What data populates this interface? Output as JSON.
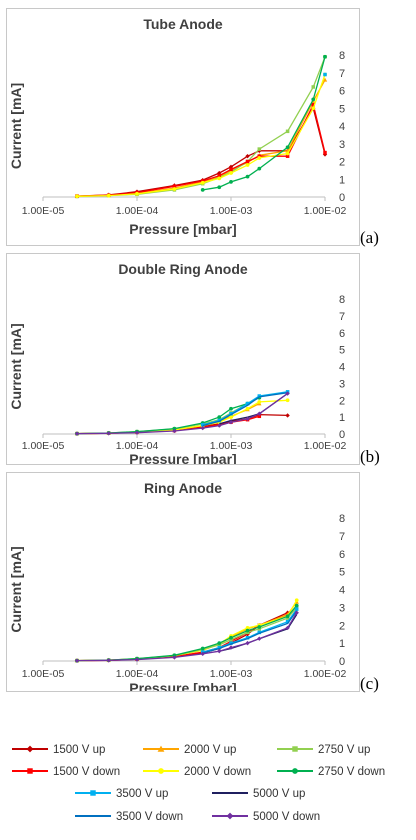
{
  "chart_data": [
    {
      "type": "line",
      "title": "Tube Anode",
      "panel_label": "(a)",
      "xlabel": "Pressure [mbar]",
      "ylabel": "Current [mA]",
      "xscale": "log",
      "xlim": [
        1e-05,
        0.01
      ],
      "ylim": [
        0,
        8
      ],
      "xticks": [
        "1.00E-05",
        "1.00E-04",
        "1.00E-03",
        "1.00E-02"
      ],
      "yticks": [
        "0",
        "1",
        "2",
        "3",
        "4",
        "5",
        "6",
        "7",
        "8"
      ],
      "series": [
        {
          "name": "1500 V up",
          "color": "#c00000",
          "marker": "diamond",
          "x": [
            2.3e-05,
            5e-05,
            0.0001,
            0.00025,
            0.0005,
            0.00075,
            0.001,
            0.0015,
            0.002,
            0.004,
            0.0075,
            0.01
          ],
          "y": [
            0.05,
            0.12,
            0.3,
            0.65,
            0.95,
            1.35,
            1.7,
            2.3,
            2.6,
            2.6,
            5.0,
            2.4
          ]
        },
        {
          "name": "2000 V up",
          "color": "#ffa500",
          "marker": "triangle",
          "x": [
            2.3e-05,
            5e-05,
            0.0001,
            0.00025,
            0.0005,
            0.00075,
            0.001,
            0.0015,
            0.002,
            0.004,
            0.0075,
            0.01
          ],
          "y": [
            0.05,
            0.1,
            0.2,
            0.5,
            0.85,
            1.15,
            1.5,
            1.95,
            2.35,
            2.6,
            5.4,
            6.6
          ]
        },
        {
          "name": "2750 V up",
          "color": "#92d050",
          "marker": "square",
          "x": [
            2.3e-05,
            5e-05,
            0.0001,
            0.00025,
            0.0005,
            0.00075,
            0.001,
            0.0015,
            0.002,
            0.004,
            0.0075,
            0.01
          ],
          "y": [
            0.03,
            0.08,
            0.15,
            0.4,
            0.75,
            1.1,
            1.4,
            2.0,
            2.7,
            3.7,
            6.2,
            7.9
          ]
        },
        {
          "name": "1500 V down",
          "color": "#ff0000",
          "marker": "square",
          "x": [
            2.3e-05,
            5e-05,
            0.0001,
            0.00025,
            0.0005,
            0.00075,
            0.001,
            0.0015,
            0.002,
            0.004,
            0.0075,
            0.01
          ],
          "y": [
            0.05,
            0.1,
            0.25,
            0.6,
            0.9,
            1.2,
            1.55,
            2.0,
            2.3,
            2.3,
            5.2,
            2.5
          ]
        },
        {
          "name": "2000 V down",
          "color": "#ffff00",
          "marker": "circle",
          "x": [
            2.3e-05,
            5e-05,
            0.0001,
            0.00025,
            0.0005,
            0.00075,
            0.001,
            0.0015,
            0.002,
            0.004,
            0.0075,
            0.01
          ],
          "y": [
            0.04,
            0.08,
            0.18,
            0.45,
            0.8,
            1.05,
            1.35,
            1.8,
            2.2,
            2.45,
            5.0,
            6.9
          ]
        },
        {
          "name": "2750 V down",
          "color": "#00b050",
          "marker": "circle",
          "x": [
            0.0005,
            0.00075,
            0.001,
            0.0015,
            0.002,
            0.004,
            0.0075,
            0.01
          ],
          "y": [
            0.4,
            0.55,
            0.85,
            1.15,
            1.6,
            2.8,
            5.5,
            7.9
          ]
        },
        {
          "name": "3500 V up",
          "color": "#00b0f0",
          "marker": "square",
          "x": [
            0.01
          ],
          "y": [
            6.9
          ]
        }
      ]
    },
    {
      "type": "line",
      "title": "Double Ring Anode",
      "panel_label": "(b)",
      "xlabel": "Pressure [mbar]",
      "ylabel": "Current [mA]",
      "xscale": "log",
      "xlim": [
        1e-05,
        0.01
      ],
      "ylim": [
        0,
        8
      ],
      "xticks": [
        "1.00E-05",
        "1.00E-04",
        "1.00E-03",
        "1.00E-02"
      ],
      "yticks": [
        "0",
        "1",
        "2",
        "3",
        "4",
        "5",
        "6",
        "7",
        "8"
      ],
      "series": [
        {
          "name": "1500 V up",
          "color": "#c00000",
          "marker": "diamond",
          "x": [
            2.3e-05,
            5e-05,
            0.0001,
            0.00025,
            0.0005,
            0.00075,
            0.001,
            0.0015,
            0.002,
            0.004
          ],
          "y": [
            0.02,
            0.05,
            0.1,
            0.2,
            0.45,
            0.6,
            0.75,
            0.9,
            1.15,
            1.1
          ]
        },
        {
          "name": "1500 V down",
          "color": "#ff0000",
          "marker": "square",
          "x": [
            2.3e-05,
            5e-05,
            0.0001,
            0.00025,
            0.0005,
            0.00075,
            0.001,
            0.0015,
            0.002
          ],
          "y": [
            0.02,
            0.05,
            0.1,
            0.2,
            0.4,
            0.55,
            0.7,
            0.85,
            1.05
          ]
        },
        {
          "name": "2000 V up",
          "color": "#ffa500",
          "marker": "triangle",
          "x": [
            2.3e-05,
            5e-05,
            0.0001,
            0.00025,
            0.0005,
            0.00075,
            0.001,
            0.0015,
            0.002
          ],
          "y": [
            0.02,
            0.05,
            0.12,
            0.25,
            0.5,
            0.75,
            1.05,
            1.45,
            1.8
          ]
        },
        {
          "name": "2000 V down",
          "color": "#ffff00",
          "marker": "circle",
          "x": [
            2.3e-05,
            5e-05,
            0.0001,
            0.00025,
            0.0005,
            0.00075,
            0.001,
            0.0015,
            0.002,
            0.004
          ],
          "y": [
            0.02,
            0.05,
            0.12,
            0.25,
            0.5,
            0.7,
            1.0,
            1.5,
            1.9,
            2.0
          ]
        },
        {
          "name": "2750 V up",
          "color": "#92d050",
          "marker": "square",
          "x": [
            2.3e-05,
            5e-05,
            0.0001,
            0.00025,
            0.0005,
            0.00075,
            0.001,
            0.0015,
            0.002
          ],
          "y": [
            0.02,
            0.06,
            0.14,
            0.3,
            0.6,
            0.85,
            1.25,
            1.8,
            2.2
          ]
        },
        {
          "name": "2750 V down",
          "color": "#00b050",
          "marker": "circle",
          "x": [
            2.3e-05,
            5e-05,
            0.0001,
            0.00025,
            0.0005,
            0.00075,
            0.001,
            0.0015,
            0.002
          ],
          "y": [
            0.02,
            0.06,
            0.14,
            0.32,
            0.65,
            1.0,
            1.5,
            1.8,
            2.15
          ]
        },
        {
          "name": "3500 V up",
          "color": "#00b0f0",
          "marker": "square",
          "x": [
            0.0005,
            0.00075,
            0.001,
            0.0015,
            0.002,
            0.004
          ],
          "y": [
            0.55,
            0.8,
            1.2,
            1.8,
            2.25,
            2.5
          ]
        },
        {
          "name": "3500 V down",
          "color": "#0070c0",
          "marker": "none",
          "x": [
            0.0005,
            0.00075,
            0.001,
            0.0015,
            0.002,
            0.004
          ],
          "y": [
            0.5,
            0.75,
            1.15,
            1.7,
            2.2,
            2.45
          ]
        },
        {
          "name": "5000 V up",
          "color": "#1f1f5f",
          "marker": "none",
          "x": [
            0.00075,
            0.001,
            0.0015,
            0.002,
            0.004
          ],
          "y": [
            0.6,
            0.8,
            1.0,
            1.2,
            2.4
          ]
        },
        {
          "name": "5000 V down",
          "color": "#7030a0",
          "marker": "diamond",
          "x": [
            2.3e-05,
            5e-05,
            0.0001,
            0.00025,
            0.0005,
            0.00075,
            0.001,
            0.0015,
            0.002,
            0.004
          ],
          "y": [
            0.02,
            0.04,
            0.08,
            0.18,
            0.35,
            0.5,
            0.7,
            0.9,
            1.2,
            2.4
          ]
        }
      ]
    },
    {
      "type": "line",
      "title": "Ring Anode",
      "panel_label": "(c)",
      "xlabel": "Pressure [mbar]",
      "ylabel": "Current [mA]",
      "xscale": "log",
      "xlim": [
        1e-05,
        0.01
      ],
      "ylim": [
        0,
        8
      ],
      "xticks": [
        "1.00E-05",
        "1.00E-04",
        "1.00E-03",
        "1.00E-02"
      ],
      "yticks": [
        "0",
        "1",
        "2",
        "3",
        "4",
        "5",
        "6",
        "7",
        "8"
      ],
      "series": [
        {
          "name": "1500 V up",
          "color": "#c00000",
          "marker": "diamond",
          "x": [
            2.3e-05,
            5e-05,
            0.0001,
            0.00025,
            0.0005,
            0.00075,
            0.001,
            0.0015,
            0.002,
            0.004
          ],
          "y": [
            0.02,
            0.04,
            0.1,
            0.25,
            0.45,
            0.7,
            1.0,
            1.5,
            2.0,
            2.7
          ]
        },
        {
          "name": "1500 V down",
          "color": "#ff0000",
          "marker": "square",
          "x": [
            2.3e-05,
            5e-05,
            0.0001,
            0.00025,
            0.0005,
            0.00075,
            0.001,
            0.0015,
            0.002,
            0.004
          ],
          "y": [
            0.02,
            0.04,
            0.1,
            0.25,
            0.5,
            0.75,
            1.1,
            1.6,
            2.0,
            2.6
          ]
        },
        {
          "name": "2000 V up",
          "color": "#ffa500",
          "marker": "triangle",
          "x": [
            2.3e-05,
            5e-05,
            0.0001,
            0.00025,
            0.0005,
            0.00075,
            0.001,
            0.0015,
            0.002,
            0.004,
            0.005
          ],
          "y": [
            0.02,
            0.05,
            0.12,
            0.3,
            0.6,
            0.95,
            1.35,
            1.8,
            2.0,
            2.6,
            3.3
          ]
        },
        {
          "name": "2000 V down",
          "color": "#ffff00",
          "marker": "circle",
          "x": [
            2.3e-05,
            5e-05,
            0.0001,
            0.00025,
            0.0005,
            0.00075,
            0.001,
            0.0015,
            0.002,
            0.004,
            0.005
          ],
          "y": [
            0.02,
            0.05,
            0.12,
            0.3,
            0.6,
            0.95,
            1.4,
            1.85,
            2.0,
            2.5,
            3.4
          ]
        },
        {
          "name": "2750 V up",
          "color": "#92d050",
          "marker": "square",
          "x": [
            2.3e-05,
            5e-05,
            0.0001,
            0.00025,
            0.0005,
            0.00075,
            0.001,
            0.0015,
            0.002,
            0.004,
            0.005
          ],
          "y": [
            0.02,
            0.05,
            0.13,
            0.3,
            0.65,
            0.9,
            1.2,
            1.6,
            1.8,
            2.4,
            3.0
          ]
        },
        {
          "name": "2750 V down",
          "color": "#00b050",
          "marker": "circle",
          "x": [
            2.3e-05,
            5e-05,
            0.0001,
            0.00025,
            0.0005,
            0.00075,
            0.001,
            0.0015,
            0.002,
            0.004,
            0.005
          ],
          "y": [
            0.02,
            0.05,
            0.13,
            0.32,
            0.7,
            1.0,
            1.3,
            1.7,
            1.9,
            2.5,
            3.1
          ]
        },
        {
          "name": "3500 V up",
          "color": "#00b0f0",
          "marker": "square",
          "x": [
            0.0005,
            0.00075,
            0.001,
            0.0015,
            0.002,
            0.004,
            0.005
          ],
          "y": [
            0.5,
            0.75,
            1.0,
            1.3,
            1.6,
            2.2,
            2.9
          ]
        },
        {
          "name": "3500 V down",
          "color": "#0070c0",
          "marker": "none",
          "x": [
            0.0005,
            0.00075,
            0.001,
            0.0015,
            0.002,
            0.004,
            0.005
          ],
          "y": [
            0.45,
            0.7,
            0.95,
            1.25,
            1.55,
            2.1,
            2.8
          ]
        },
        {
          "name": "5000 V up",
          "color": "#1f1f5f",
          "marker": "none",
          "x": [
            0.00075,
            0.001,
            0.0015,
            0.002,
            0.004,
            0.005
          ],
          "y": [
            0.55,
            0.7,
            1.0,
            1.25,
            1.8,
            2.6
          ]
        },
        {
          "name": "5000 V down",
          "color": "#7030a0",
          "marker": "diamond",
          "x": [
            2.3e-05,
            5e-05,
            0.0001,
            0.00025,
            0.0005,
            0.00075,
            0.001,
            0.0015,
            0.002,
            0.004,
            0.005
          ],
          "y": [
            0.02,
            0.04,
            0.08,
            0.2,
            0.4,
            0.55,
            0.75,
            1.0,
            1.25,
            1.85,
            2.7
          ]
        }
      ]
    }
  ],
  "legend": {
    "entries": [
      {
        "name": "1500 V up",
        "color": "#c00000",
        "marker": "diamond"
      },
      {
        "name": "2000 V up",
        "color": "#ffa500",
        "marker": "triangle"
      },
      {
        "name": "2750 V up",
        "color": "#92d050",
        "marker": "square"
      },
      {
        "name": "1500 V down",
        "color": "#ff0000",
        "marker": "square"
      },
      {
        "name": "2000 V down",
        "color": "#ffff00",
        "marker": "circle"
      },
      {
        "name": "2750 V down",
        "color": "#00b050",
        "marker": "circle"
      },
      {
        "name": "3500 V up",
        "color": "#00b0f0",
        "marker": "square"
      },
      {
        "name": "5000 V up",
        "color": "#1f1f5f",
        "marker": "none"
      },
      {
        "name": "3500 V down",
        "color": "#0070c0",
        "marker": "none"
      },
      {
        "name": "5000 V down",
        "color": "#7030a0",
        "marker": "diamond"
      }
    ]
  }
}
